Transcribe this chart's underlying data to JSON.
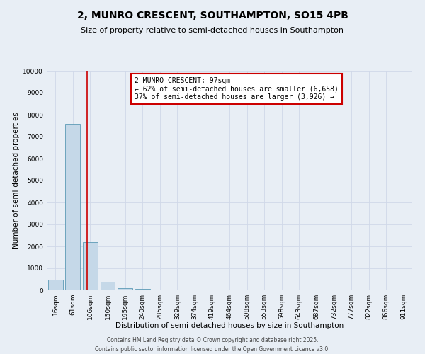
{
  "title": "2, MUNRO CRESCENT, SOUTHAMPTON, SO15 4PB",
  "subtitle": "Size of property relative to semi-detached houses in Southampton",
  "xlabel": "Distribution of semi-detached houses by size in Southampton",
  "ylabel": "Number of semi-detached properties",
  "categories": [
    "16sqm",
    "61sqm",
    "106sqm",
    "150sqm",
    "195sqm",
    "240sqm",
    "285sqm",
    "329sqm",
    "374sqm",
    "419sqm",
    "464sqm",
    "508sqm",
    "553sqm",
    "598sqm",
    "643sqm",
    "687sqm",
    "732sqm",
    "777sqm",
    "822sqm",
    "866sqm",
    "911sqm"
  ],
  "values": [
    490,
    7580,
    2200,
    390,
    105,
    50,
    0,
    0,
    0,
    0,
    0,
    0,
    0,
    0,
    0,
    0,
    0,
    0,
    0,
    0,
    0
  ],
  "bar_color": "#c5d8e8",
  "bar_edge_color": "#5b9ab5",
  "ylim": [
    0,
    10000
  ],
  "yticks": [
    0,
    1000,
    2000,
    3000,
    4000,
    5000,
    6000,
    7000,
    8000,
    9000,
    10000
  ],
  "red_line_x": 1.8,
  "annotation_title": "2 MUNRO CRESCENT: 97sqm",
  "annotation_line1": "← 62% of semi-detached houses are smaller (6,658)",
  "annotation_line2": "37% of semi-detached houses are larger (3,926) →",
  "annotation_box_color": "#ffffff",
  "annotation_box_edge": "#cc0000",
  "red_line_color": "#cc0000",
  "grid_color": "#d0d8e8",
  "background_color": "#e8eef5",
  "footer_line1": "Contains HM Land Registry data © Crown copyright and database right 2025.",
  "footer_line2": "Contains public sector information licensed under the Open Government Licence v3.0.",
  "title_fontsize": 10,
  "subtitle_fontsize": 8,
  "tick_fontsize": 6.5,
  "ylabel_fontsize": 7.5,
  "xlabel_fontsize": 7.5,
  "annotation_fontsize": 7,
  "footer_fontsize": 5.5
}
